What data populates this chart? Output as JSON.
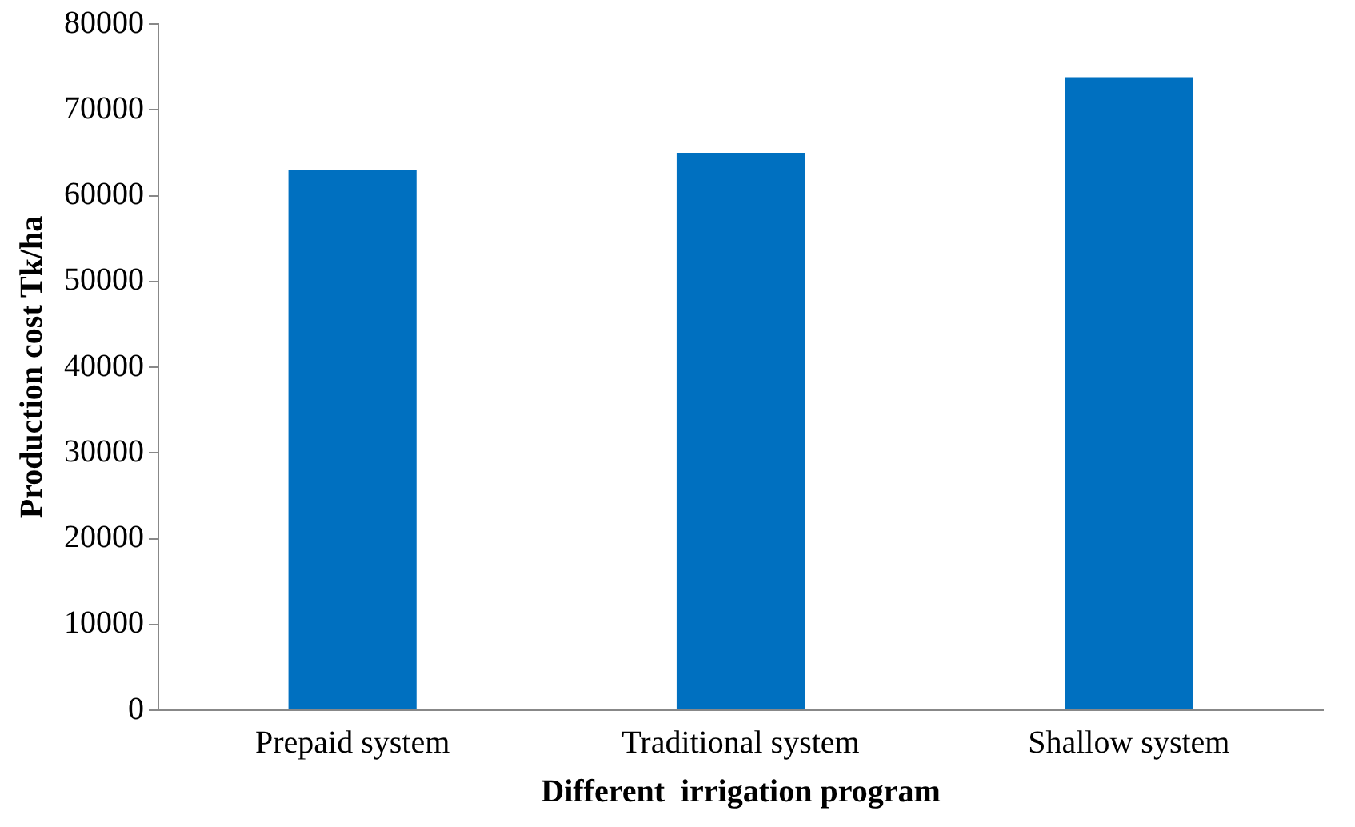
{
  "chart_data": {
    "type": "bar",
    "xlabel": "Different  irrigation program",
    "ylabel": "Production cost Tk/ha",
    "categories": [
      "Prepaid system",
      "Traditional system",
      "Shallow system"
    ],
    "values": [
      63000,
      65000,
      73800
    ],
    "color": "#0070c0",
    "ylim": [
      0,
      80000
    ],
    "yticks": [
      0,
      10000,
      20000,
      30000,
      40000,
      50000,
      60000,
      70000,
      80000
    ],
    "grid": false,
    "legend": false
  }
}
